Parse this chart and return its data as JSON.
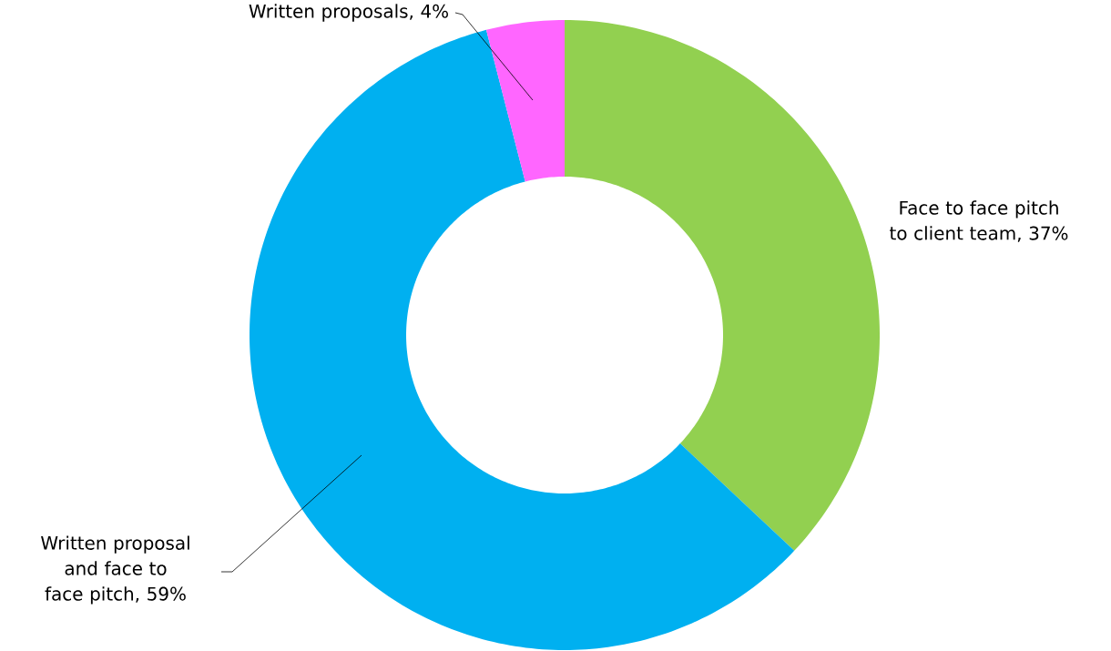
{
  "chart_data": {
    "type": "donut",
    "categories": [
      "Face to face pitch to client team",
      "Written proposal and face to face pitch",
      "Written proposals"
    ],
    "values": [
      37,
      59,
      4
    ],
    "value_labels": [
      ", 37%",
      ", 59%",
      ", 4%"
    ],
    "colors": [
      "#92d050",
      "#00b0f0",
      "#ff66ff"
    ]
  }
}
